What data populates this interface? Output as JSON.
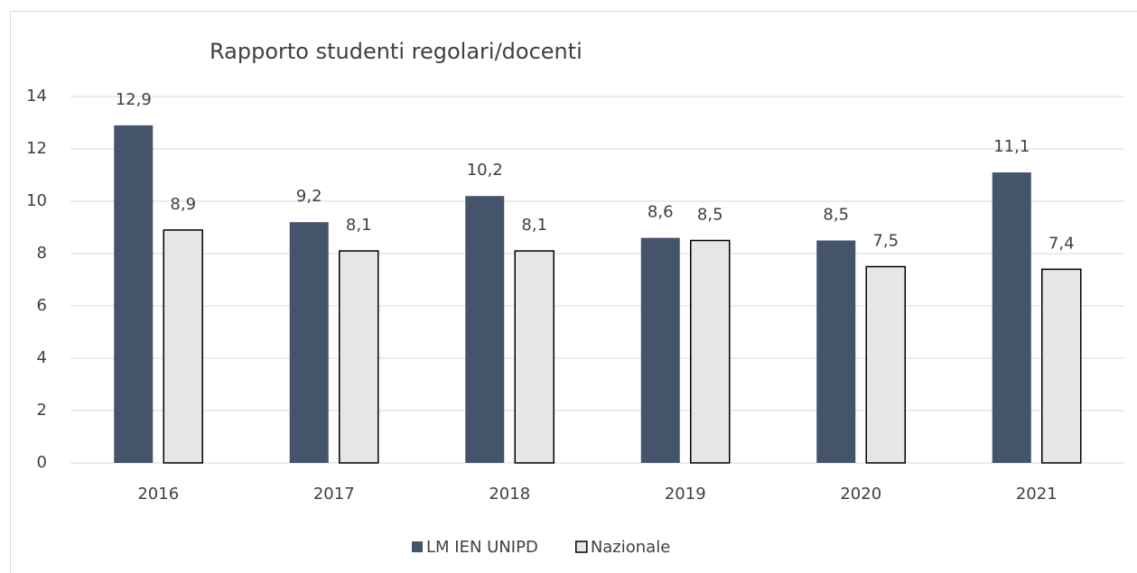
{
  "chart_data": {
    "type": "bar",
    "title": "Rapporto studenti regolari/docenti",
    "categories": [
      "2016",
      "2017",
      "2018",
      "2019",
      "2020",
      "2021"
    ],
    "series": [
      {
        "name": "LM IEN UNIPD",
        "color": "#44546a",
        "values": [
          12.9,
          9.2,
          10.2,
          8.6,
          8.5,
          11.1
        ],
        "value_labels": [
          "12,9",
          "9,2",
          "10,2",
          "8,6",
          "8,5",
          "11,1"
        ]
      },
      {
        "name": "Nazionale",
        "color": "#e7e6e6",
        "values": [
          8.9,
          8.1,
          8.1,
          8.5,
          7.5,
          7.4
        ],
        "value_labels": [
          "8,9",
          "8,1",
          "8,1",
          "8,5",
          "7,5",
          "7,4"
        ]
      }
    ],
    "ylim": [
      0,
      14
    ],
    "yticks": [
      0,
      2,
      4,
      6,
      8,
      10,
      12,
      14
    ],
    "grid": true,
    "legend": "bottom"
  }
}
